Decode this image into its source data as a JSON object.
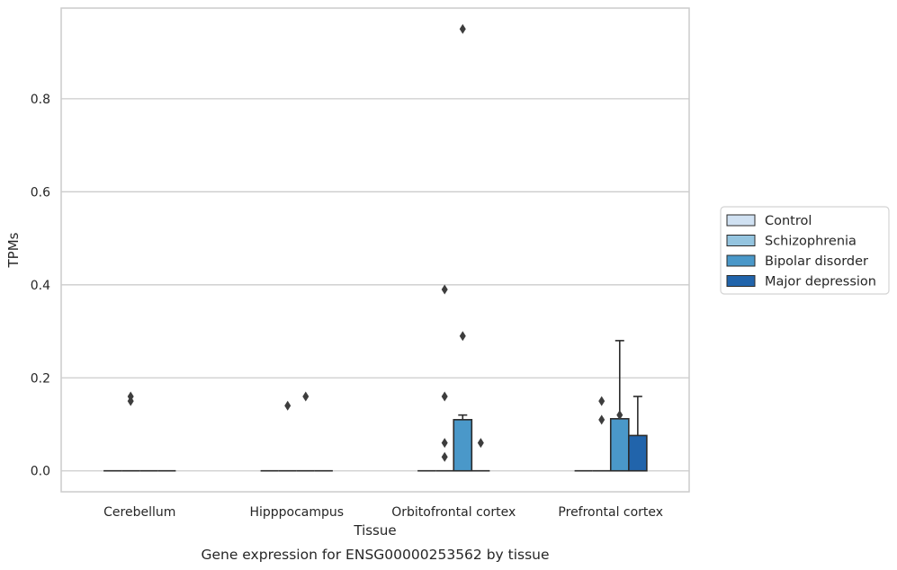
{
  "chart_data": {
    "type": "bar",
    "xlabel": "Tissue",
    "ylabel": "TPMs",
    "caption": "Gene expression for ENSG00000253562 by tissue",
    "categories": [
      "Cerebellum",
      "Hipppocampus",
      "Orbitofrontal cortex",
      "Prefrontal cortex"
    ],
    "ylim": [
      -0.045,
      0.995
    ],
    "yticks": [
      0.0,
      0.2,
      0.4,
      0.6,
      0.8
    ],
    "ytick_labels": [
      "0.0",
      "0.2",
      "0.4",
      "0.6",
      "0.8"
    ],
    "grid": true,
    "legend_position": "right",
    "series": [
      {
        "name": "Control",
        "color": "#d0e1f2",
        "values": [
          0,
          0,
          0,
          0
        ],
        "error_upper": [
          null,
          null,
          null,
          null
        ],
        "outliers": [
          [],
          [],
          [],
          []
        ]
      },
      {
        "name": "Schizophrenia",
        "color": "#94c4df",
        "values": [
          0,
          0,
          0,
          0
        ],
        "error_upper": [
          null,
          null,
          null,
          null
        ],
        "outliers": [
          [
            0.16,
            0.15
          ],
          [
            0.14
          ],
          [
            0.06,
            0.03,
            0.16,
            0.39
          ],
          [
            0.15,
            0.11
          ]
        ]
      },
      {
        "name": "Bipolar disorder",
        "color": "#4a98c9",
        "values": [
          0,
          0,
          0.11,
          0.112
        ],
        "error_upper": [
          null,
          null,
          0.12,
          0.28
        ],
        "outliers": [
          [],
          [
            0.16
          ],
          [
            0.29,
            0.95
          ],
          [
            0.12
          ]
        ]
      },
      {
        "name": "Major depression",
        "color": "#2164ab",
        "values": [
          0,
          0,
          0,
          0.076
        ],
        "error_upper": [
          null,
          null,
          null,
          0.16
        ],
        "outliers": [
          [],
          [],
          [
            0.06
          ],
          []
        ]
      }
    ]
  }
}
